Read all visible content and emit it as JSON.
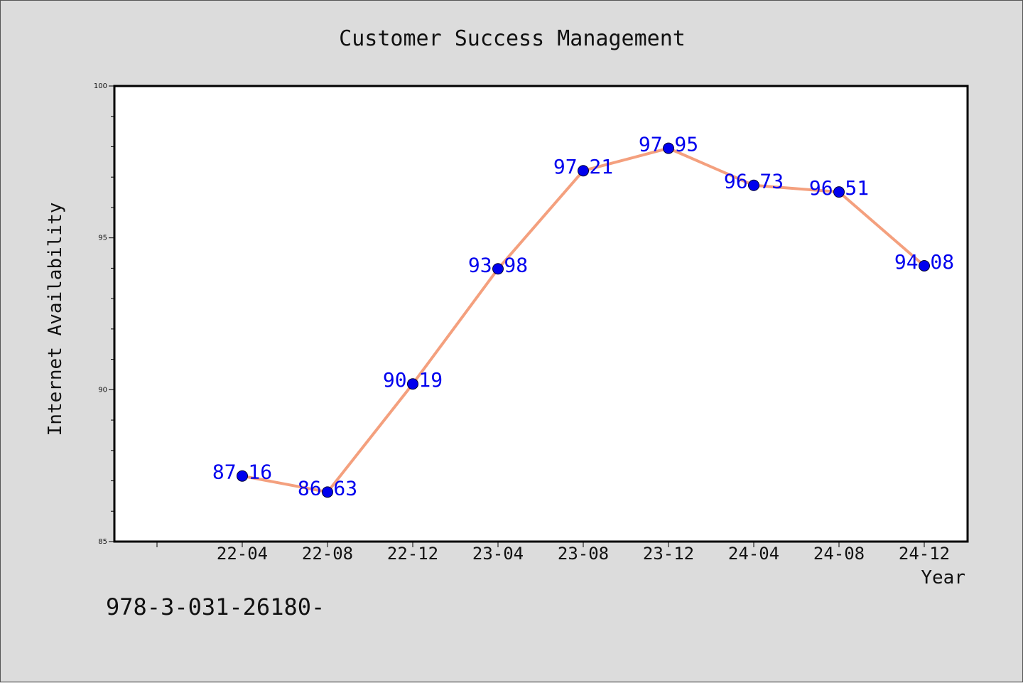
{
  "footnote": "978-3-031-26180-",
  "chart_data": {
    "type": "line",
    "title": "Customer Success Management",
    "xlabel": "Year",
    "ylabel": "Internet Availability",
    "categories": [
      "22-04",
      "22-08",
      "22-12",
      "23-04",
      "23-08",
      "23-12",
      "24-04",
      "24-08",
      "24-12"
    ],
    "values": [
      87.16,
      86.63,
      90.19,
      93.98,
      97.21,
      97.95,
      96.73,
      96.51,
      94.08
    ],
    "data_labels": [
      "87.16",
      "86.63",
      "90.19",
      "93.98",
      "97.21",
      "97.95",
      "96.73",
      "96.51",
      "94.08"
    ],
    "ylim": [
      85,
      100
    ],
    "yticks": [
      "85",
      "90",
      "95",
      "100"
    ],
    "grid": false,
    "legend": "none",
    "colors": {
      "line": "#f4a07e",
      "marker": "#0000ee",
      "data_label": "#0000ee",
      "plot_bg": "#ffffff",
      "page_bg": "#dcdcdc"
    }
  }
}
